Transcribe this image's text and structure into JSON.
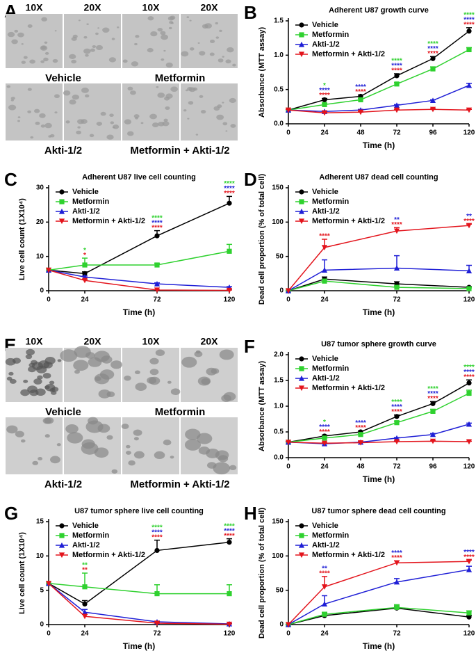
{
  "micrographs": [
    {
      "panel": "A",
      "magnifications": [
        "10X",
        "20X",
        "10X",
        "20X"
      ],
      "conditions": [
        "Vehicle",
        "Metformin",
        "Akti-1/2",
        "Metformin + Akti-1/2"
      ]
    },
    {
      "panel": "E",
      "magnifications": [
        "10X",
        "20X",
        "10X",
        "20X"
      ],
      "conditions": [
        "Vehicle",
        "Metformin",
        "Akti-1/2",
        "Metformin + Akti-1/2"
      ]
    }
  ],
  "chart_data": [
    {
      "panel": "B",
      "type": "line",
      "title": "Adherent U87 growth curve",
      "x_label": "Time  (h)",
      "y_label": "Absorbance (MTT assay)",
      "x": [
        0,
        24,
        48,
        72,
        96,
        120
      ],
      "xlim": [
        0,
        120
      ],
      "xticks": [
        0,
        24,
        48,
        72,
        96,
        120
      ],
      "ylim": [
        0,
        1.5
      ],
      "yticks": [
        {
          "value": 0,
          "label": "0.0"
        },
        {
          "value": 0.5,
          "label": "0.5"
        },
        {
          "value": 1,
          "label": "1.0"
        },
        {
          "value": 1.5,
          "label": "1.5"
        }
      ],
      "series": [
        {
          "name": "Vehicle",
          "color": "#000000",
          "marker": "circle",
          "values": [
            0.2,
            0.35,
            0.4,
            0.7,
            0.95,
            1.35
          ],
          "errors": [
            0.01,
            0.02,
            0.02,
            0.03,
            0.03,
            0.05
          ]
        },
        {
          "name": "Metformin",
          "color": "#2fd12f",
          "marker": "square",
          "values": [
            0.2,
            0.28,
            0.35,
            0.58,
            0.8,
            1.08
          ],
          "errors": [
            0.01,
            0.02,
            0.02,
            0.02,
            0.03,
            0.03
          ]
        },
        {
          "name": "Akti-1/2",
          "color": "#1f1fd6",
          "marker": "triangle",
          "values": [
            0.2,
            0.18,
            0.2,
            0.27,
            0.34,
            0.56
          ],
          "errors": [
            0.01,
            0.01,
            0.01,
            0.01,
            0.01,
            0.03
          ]
        },
        {
          "name": "Metformin + Akti-1/2",
          "color": "#e3141c",
          "marker": "triangle-down",
          "values": [
            0.2,
            0.16,
            0.17,
            0.2,
            0.21,
            0.2
          ],
          "errors": [
            0.01,
            0.01,
            0.01,
            0.01,
            0.01,
            0.01
          ]
        }
      ],
      "annotations": [
        {
          "x": 24,
          "marks": [
            {
              "text": "*",
              "color": "#2fd12f"
            },
            {
              "text": "****",
              "color": "#1f1fd6"
            },
            {
              "text": "****",
              "color": "#e3141c"
            }
          ]
        },
        {
          "x": 48,
          "marks": [
            {
              "text": "****",
              "color": "#1f1fd6"
            },
            {
              "text": "****",
              "color": "#e3141c"
            }
          ]
        },
        {
          "x": 72,
          "marks": [
            {
              "text": "****",
              "color": "#2fd12f"
            },
            {
              "text": "****",
              "color": "#1f1fd6"
            },
            {
              "text": "****",
              "color": "#e3141c"
            }
          ]
        },
        {
          "x": 96,
          "marks": [
            {
              "text": "****",
              "color": "#2fd12f"
            },
            {
              "text": "****",
              "color": "#1f1fd6"
            },
            {
              "text": "****",
              "color": "#e3141c"
            }
          ]
        },
        {
          "x": 120,
          "marks": [
            {
              "text": "****",
              "color": "#2fd12f"
            },
            {
              "text": "****",
              "color": "#1f1fd6"
            },
            {
              "text": "****",
              "color": "#e3141c"
            }
          ]
        }
      ]
    },
    {
      "panel": "C",
      "type": "line",
      "title": "Adherent U87 live cell counting",
      "x_label": "Time  (h)",
      "y_label": "Live cell count (1X10⁴)",
      "x": [
        0,
        24,
        72,
        120
      ],
      "xlim": [
        0,
        120
      ],
      "xticks": [
        0,
        24,
        72,
        120
      ],
      "ylim": [
        0,
        30
      ],
      "yticks": [
        0,
        10,
        20,
        30
      ],
      "series": [
        {
          "name": "Vehicle",
          "color": "#000000",
          "marker": "circle",
          "values": [
            6,
            5,
            16,
            25.5
          ],
          "errors": [
            0,
            0.5,
            1.5,
            2
          ]
        },
        {
          "name": "Metformin",
          "color": "#2fd12f",
          "marker": "square",
          "values": [
            6,
            7.5,
            7.5,
            11.5
          ],
          "errors": [
            0,
            2,
            0.5,
            2
          ]
        },
        {
          "name": "Akti-1/2",
          "color": "#1f1fd6",
          "marker": "triangle",
          "values": [
            6,
            4,
            2,
            1
          ],
          "errors": [
            0,
            0.3,
            0.3,
            0.2
          ]
        },
        {
          "name": "Metformin + Akti-1/2",
          "color": "#e3141c",
          "marker": "triangle-down",
          "values": [
            6,
            3,
            0.2,
            0.1
          ],
          "errors": [
            0,
            0.3,
            0.1,
            0.1
          ]
        }
      ],
      "annotations": [
        {
          "x": 24,
          "marks": [
            {
              "text": "*",
              "color": "#2fd12f"
            },
            {
              "text": "*",
              "color": "#e3141c"
            }
          ]
        },
        {
          "x": 72,
          "marks": [
            {
              "text": "****",
              "color": "#2fd12f"
            },
            {
              "text": "****",
              "color": "#1f1fd6"
            },
            {
              "text": "****",
              "color": "#e3141c"
            }
          ]
        },
        {
          "x": 120,
          "marks": [
            {
              "text": "****",
              "color": "#2fd12f"
            },
            {
              "text": "****",
              "color": "#1f1fd6"
            },
            {
              "text": "****",
              "color": "#e3141c"
            }
          ]
        }
      ]
    },
    {
      "panel": "D",
      "type": "line",
      "title": "Adherent U87 dead cell counting",
      "x_label": "Time  (h)",
      "y_label": "Dead cell proportion (% of total cell)",
      "x": [
        0,
        24,
        72,
        120
      ],
      "xlim": [
        0,
        120
      ],
      "xticks": [
        0,
        24,
        72,
        120
      ],
      "ylim": [
        0,
        150
      ],
      "yticks": [
        0,
        50,
        100,
        150
      ],
      "series": [
        {
          "name": "Vehicle",
          "color": "#000000",
          "marker": "circle",
          "values": [
            0,
            17,
            10,
            5
          ],
          "errors": [
            0,
            3,
            3,
            1
          ]
        },
        {
          "name": "Metformin",
          "color": "#2fd12f",
          "marker": "square",
          "values": [
            0,
            14,
            5,
            3
          ],
          "errors": [
            0,
            3,
            2,
            1
          ]
        },
        {
          "name": "Akti-1/2",
          "color": "#1f1fd6",
          "marker": "triangle",
          "values": [
            0,
            30,
            33,
            29
          ],
          "errors": [
            0,
            15,
            18,
            8
          ]
        },
        {
          "name": "Metformin + Akti-1/2",
          "color": "#e3141c",
          "marker": "triangle-down",
          "values": [
            0,
            63,
            87,
            95
          ],
          "errors": [
            0,
            12,
            5,
            2
          ]
        }
      ],
      "annotations": [
        {
          "x": 24,
          "marks": [
            {
              "text": "****",
              "color": "#e3141c"
            }
          ]
        },
        {
          "x": 72,
          "marks": [
            {
              "text": "**",
              "color": "#1f1fd6"
            },
            {
              "text": "****",
              "color": "#e3141c"
            }
          ]
        },
        {
          "x": 120,
          "marks": [
            {
              "text": "**",
              "color": "#1f1fd6"
            },
            {
              "text": "****",
              "color": "#e3141c"
            }
          ]
        }
      ]
    },
    {
      "panel": "F",
      "type": "line",
      "title": "U87 tumor sphere growth curve",
      "x_label": "Time  (h)",
      "y_label": "Absorbance (MTT assay)",
      "x": [
        0,
        24,
        48,
        72,
        96,
        120
      ],
      "xlim": [
        0,
        120
      ],
      "xticks": [
        0,
        24,
        48,
        72,
        96,
        120
      ],
      "ylim": [
        0,
        2
      ],
      "yticks": [
        {
          "value": 0,
          "label": "0.0"
        },
        {
          "value": 0.5,
          "label": "0.5"
        },
        {
          "value": 1,
          "label": "1.0"
        },
        {
          "value": 1.5,
          "label": "1.5"
        },
        {
          "value": 2,
          "label": "2.0"
        }
      ],
      "series": [
        {
          "name": "Vehicle",
          "color": "#000000",
          "marker": "circle",
          "values": [
            0.3,
            0.42,
            0.5,
            0.8,
            1.05,
            1.45
          ],
          "errors": [
            0.01,
            0.02,
            0.02,
            0.03,
            0.04,
            0.06
          ]
        },
        {
          "name": "Metformin",
          "color": "#2fd12f",
          "marker": "square",
          "values": [
            0.3,
            0.38,
            0.45,
            0.68,
            0.9,
            1.25
          ],
          "errors": [
            0.01,
            0.02,
            0.02,
            0.03,
            0.04,
            0.06
          ]
        },
        {
          "name": "Akti-1/2",
          "color": "#1f1fd6",
          "marker": "triangle",
          "values": [
            0.3,
            0.27,
            0.3,
            0.38,
            0.45,
            0.65
          ],
          "errors": [
            0.01,
            0.01,
            0.01,
            0.01,
            0.02,
            0.02
          ]
        },
        {
          "name": "Metformin + Akti-1/2",
          "color": "#e3141c",
          "marker": "triangle-down",
          "values": [
            0.3,
            0.28,
            0.29,
            0.31,
            0.32,
            0.31
          ],
          "errors": [
            0.01,
            0.01,
            0.01,
            0.01,
            0.01,
            0.01
          ]
        }
      ],
      "annotations": [
        {
          "x": 24,
          "marks": [
            {
              "text": "*",
              "color": "#2fd12f"
            },
            {
              "text": "****",
              "color": "#1f1fd6"
            },
            {
              "text": "****",
              "color": "#e3141c"
            }
          ]
        },
        {
          "x": 48,
          "marks": [
            {
              "text": "****",
              "color": "#1f1fd6"
            },
            {
              "text": "****",
              "color": "#e3141c"
            }
          ]
        },
        {
          "x": 72,
          "marks": [
            {
              "text": "****",
              "color": "#2fd12f"
            },
            {
              "text": "****",
              "color": "#1f1fd6"
            },
            {
              "text": "****",
              "color": "#e3141c"
            }
          ]
        },
        {
          "x": 96,
          "marks": [
            {
              "text": "****",
              "color": "#2fd12f"
            },
            {
              "text": "****",
              "color": "#1f1fd6"
            },
            {
              "text": "****",
              "color": "#e3141c"
            }
          ]
        },
        {
          "x": 120,
          "marks": [
            {
              "text": "****",
              "color": "#2fd12f"
            },
            {
              "text": "****",
              "color": "#1f1fd6"
            },
            {
              "text": "****",
              "color": "#e3141c"
            }
          ]
        }
      ]
    },
    {
      "panel": "G",
      "type": "line",
      "title": "U87 tumor sphere live cell counting",
      "x_label": "Time  (h)",
      "y_label": "Live cell count (1X10⁴)",
      "x": [
        0,
        24,
        72,
        120
      ],
      "xlim": [
        0,
        120
      ],
      "xticks": [
        0,
        24,
        72,
        120
      ],
      "ylim": [
        0,
        15
      ],
      "yticks": [
        0,
        5,
        10,
        15
      ],
      "series": [
        {
          "name": "Vehicle",
          "color": "#000000",
          "marker": "circle",
          "values": [
            6,
            3,
            10.8,
            12
          ],
          "errors": [
            0,
            0.5,
            1.5,
            0.5
          ]
        },
        {
          "name": "Metformin",
          "color": "#2fd12f",
          "marker": "square",
          "values": [
            6,
            5.5,
            4.5,
            4.5
          ],
          "errors": [
            0,
            2,
            1.3,
            1.3
          ]
        },
        {
          "name": "Akti-1/2",
          "color": "#1f1fd6",
          "marker": "triangle",
          "values": [
            6,
            1.8,
            0.4,
            0.1
          ],
          "errors": [
            0,
            0.4,
            0.1,
            0.05
          ]
        },
        {
          "name": "Metformin + Akti-1/2",
          "color": "#e3141c",
          "marker": "triangle-down",
          "values": [
            6,
            1.2,
            0.2,
            0.05
          ],
          "errors": [
            0,
            0.3,
            0.1,
            0.05
          ]
        }
      ],
      "annotations": [
        {
          "x": 24,
          "marks": [
            {
              "text": "**",
              "color": "#2fd12f"
            },
            {
              "text": "**",
              "color": "#e3141c"
            }
          ]
        },
        {
          "x": 72,
          "marks": [
            {
              "text": "****",
              "color": "#2fd12f"
            },
            {
              "text": "****",
              "color": "#1f1fd6"
            },
            {
              "text": "****",
              "color": "#e3141c"
            }
          ]
        },
        {
          "x": 120,
          "marks": [
            {
              "text": "****",
              "color": "#2fd12f"
            },
            {
              "text": "****",
              "color": "#1f1fd6"
            },
            {
              "text": "****",
              "color": "#e3141c"
            }
          ]
        }
      ]
    },
    {
      "panel": "H",
      "type": "line",
      "title": "U87 tumor sphere dead cell counting",
      "x_label": "Time  (h)",
      "y_label": "Dead cell proportion (% of total cell)",
      "x": [
        0,
        24,
        72,
        120
      ],
      "xlim": [
        0,
        120
      ],
      "xticks": [
        0,
        24,
        72,
        120
      ],
      "ylim": [
        0,
        150
      ],
      "yticks": [
        0,
        50,
        100,
        150
      ],
      "series": [
        {
          "name": "Vehicle",
          "color": "#000000",
          "marker": "circle",
          "values": [
            0,
            13,
            24,
            11
          ],
          "errors": [
            0,
            4,
            3,
            2
          ]
        },
        {
          "name": "Metformin",
          "color": "#2fd12f",
          "marker": "square",
          "values": [
            0,
            15,
            25,
            17
          ],
          "errors": [
            0,
            3,
            4,
            3
          ]
        },
        {
          "name": "Akti-1/2",
          "color": "#1f1fd6",
          "marker": "triangle",
          "values": [
            0,
            30,
            62,
            80
          ],
          "errors": [
            0,
            12,
            5,
            5
          ]
        },
        {
          "name": "Metformin + Akti-1/2",
          "color": "#e3141c",
          "marker": "triangle-down",
          "values": [
            0,
            55,
            90,
            92
          ],
          "errors": [
            0,
            15,
            3,
            2
          ]
        }
      ],
      "annotations": [
        {
          "x": 24,
          "marks": [
            {
              "text": "**",
              "color": "#1f1fd6"
            },
            {
              "text": "****",
              "color": "#e3141c"
            }
          ]
        },
        {
          "x": 72,
          "marks": [
            {
              "text": "****",
              "color": "#1f1fd6"
            },
            {
              "text": "****",
              "color": "#e3141c"
            }
          ]
        },
        {
          "x": 120,
          "marks": [
            {
              "text": "****",
              "color": "#1f1fd6"
            },
            {
              "text": "****",
              "color": "#e3141c"
            }
          ]
        }
      ]
    }
  ]
}
